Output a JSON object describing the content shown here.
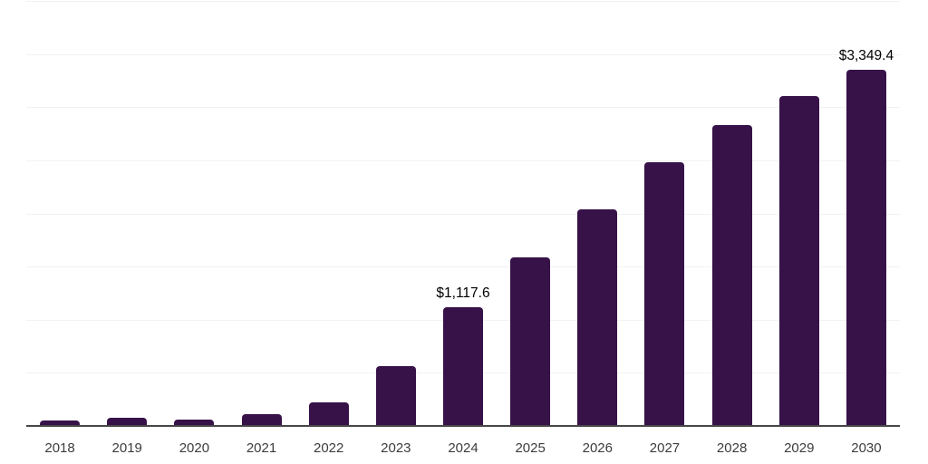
{
  "chart_data": {
    "type": "bar",
    "title": "",
    "xlabel": "",
    "ylabel": "",
    "categories": [
      "2018",
      "2019",
      "2020",
      "2021",
      "2022",
      "2023",
      "2024",
      "2025",
      "2026",
      "2027",
      "2028",
      "2029",
      "2030"
    ],
    "values": [
      50,
      77,
      60,
      107,
      222,
      562,
      1117.6,
      1587,
      2040,
      2480,
      2833,
      3103,
      3349.4
    ],
    "value_labels": [
      {
        "category": "2024",
        "text": "$1,117.6"
      },
      {
        "category": "2030",
        "text": "$3,349.4"
      }
    ],
    "ylim": [
      0,
      4000
    ],
    "gridline_step": 500,
    "grid": "horizontal",
    "legend": "none",
    "colors": {
      "bar": "#371249",
      "grid": "#f2f2f2",
      "axis": "#474747",
      "tick_label": "#3c3c3c",
      "value_label": "#000000",
      "background": "#ffffff"
    }
  }
}
